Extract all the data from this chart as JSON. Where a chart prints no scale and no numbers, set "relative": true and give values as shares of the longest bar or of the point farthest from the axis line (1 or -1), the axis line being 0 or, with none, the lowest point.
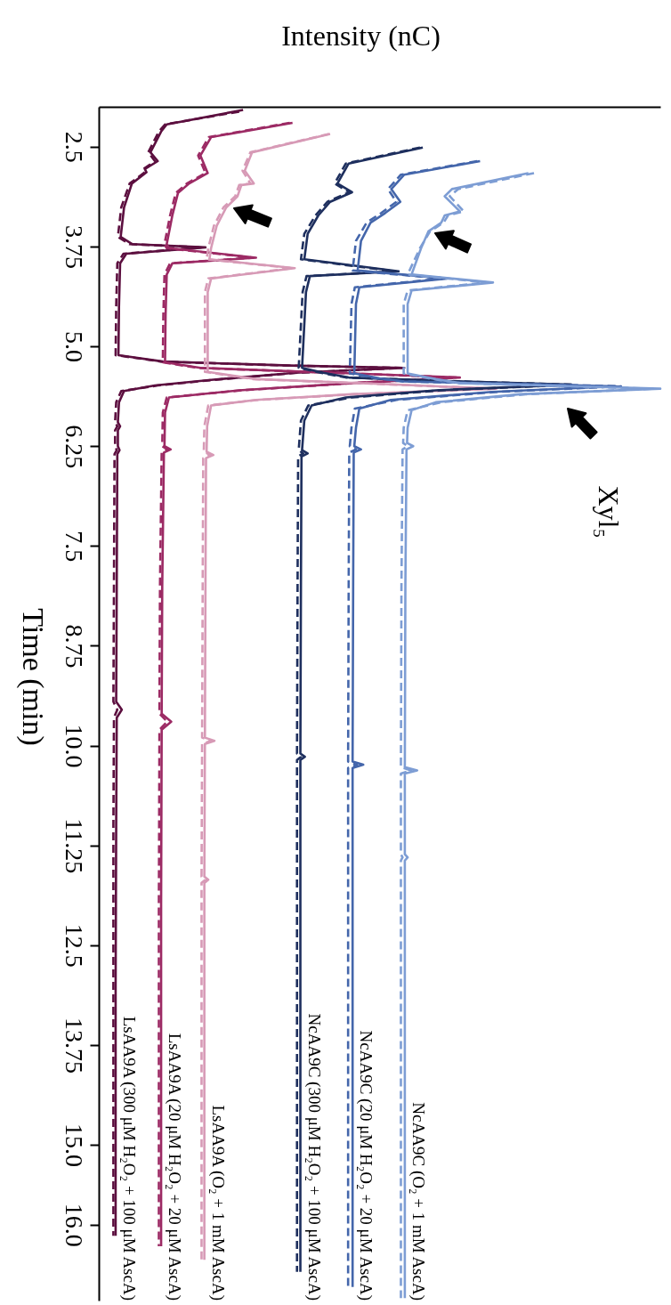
{
  "chart_data": {
    "type": "line",
    "orientation": "horizontal",
    "xlabel": "Intensity (nC)",
    "ylabel": "Time (min)",
    "relative": true,
    "ylim": [
      16.95,
      2.0
    ],
    "yticks": [
      2.5,
      3.75,
      {
        "value": 5,
        "label": "5.0"
      },
      6.25,
      7.5,
      8.75,
      {
        "value": 10,
        "label": "10.0"
      },
      11.25,
      12.5,
      13.75,
      {
        "value": 15,
        "label": "15.0"
      },
      {
        "value": 16,
        "label": "16.0"
      }
    ],
    "annotations": [
      "Xyl₅"
    ],
    "series": [
      {
        "name": "LsAA9A (300 μM H₂O₂ + 100 μM AscA)",
        "color": "#5c0f3f",
        "line_style": "solid",
        "x": [
          2.04,
          2.22,
          2.31,
          2.57,
          2.68,
          2.78,
          2.82,
          2.96,
          3.26,
          3.63,
          3.72,
          3.76,
          3.84,
          3.96,
          4.5,
          5.11,
          5.19,
          5.24,
          5.27,
          5.33,
          5.42,
          5.49,
          5.56,
          5.7,
          5.95,
          6.0,
          6.05,
          6.25,
          6.3,
          6.35,
          8.0,
          9.45,
          9.55,
          9.65,
          11.0,
          13.0,
          16.14
        ],
        "values": [
          0.257,
          0.121,
          0.111,
          0.092,
          0.105,
          0.082,
          0.085,
          0.059,
          0.045,
          0.039,
          0.06,
          0.19,
          0.049,
          0.038,
          0.036,
          0.035,
          0.114,
          0.34,
          0.544,
          0.35,
          0.2,
          0.1,
          0.045,
          0.036,
          0.034,
          0.038,
          0.034,
          0.034,
          0.037,
          0.033,
          0.032,
          0.031,
          0.041,
          0.032,
          0.031,
          0.03,
          0.03
        ]
      },
      {
        "color": "#5c0f3f",
        "line_style": "dashed",
        "x": [
          2.06,
          2.22,
          2.31,
          2.57,
          2.68,
          2.78,
          2.82,
          2.96,
          3.26,
          3.63,
          3.72,
          3.76,
          3.84,
          3.96,
          4.5,
          5.11,
          5.19,
          5.24,
          5.27,
          5.33,
          5.42,
          5.49,
          5.56,
          5.7,
          5.95,
          6.0,
          6.05,
          6.25,
          6.3,
          6.35,
          8.0,
          9.45,
          9.55,
          9.65,
          11.0,
          13.0,
          16.14
        ],
        "values": [
          0.25,
          0.118,
          0.107,
          0.088,
          0.1,
          0.079,
          0.082,
          0.055,
          0.04,
          0.034,
          0.055,
          0.185,
          0.044,
          0.033,
          0.031,
          0.03,
          0.11,
          0.335,
          0.54,
          0.355,
          0.205,
          0.105,
          0.04,
          0.031,
          0.029,
          0.033,
          0.029,
          0.029,
          0.032,
          0.028,
          0.027,
          0.026,
          0.033,
          0.027,
          0.026,
          0.026,
          0.026
        ]
      },
      {
        "name": "LsAA9A (20 μM H₂O₂ + 20 μM AscA)",
        "color": "#9c2a64",
        "line_style": "solid",
        "x": [
          2.2,
          2.38,
          2.61,
          2.83,
          2.96,
          3.08,
          3.36,
          3.72,
          3.77,
          3.89,
          3.96,
          4.1,
          4.6,
          5.2,
          5.27,
          5.33,
          5.39,
          5.46,
          5.55,
          5.64,
          5.83,
          6.25,
          6.29,
          6.33,
          8.0,
          9.6,
          9.7,
          9.8,
          12.0,
          16.27
        ],
        "values": [
          0.345,
          0.2,
          0.181,
          0.194,
          0.161,
          0.141,
          0.131,
          0.121,
          0.125,
          0.28,
          0.131,
          0.121,
          0.119,
          0.118,
          0.181,
          0.42,
          0.643,
          0.45,
          0.25,
          0.125,
          0.118,
          0.117,
          0.128,
          0.116,
          0.113,
          0.112,
          0.129,
          0.112,
          0.111,
          0.111
        ]
      },
      {
        "color": "#9c2a64",
        "line_style": "dashed",
        "x": [
          2.2,
          2.38,
          2.61,
          2.83,
          2.96,
          3.08,
          3.36,
          3.72,
          3.77,
          3.89,
          3.96,
          4.1,
          4.6,
          5.2,
          5.27,
          5.33,
          5.39,
          5.46,
          5.55,
          5.64,
          5.83,
          6.25,
          6.29,
          6.33,
          8.0,
          9.6,
          9.7,
          9.8,
          12.0,
          16.27
        ],
        "values": [
          0.34,
          0.196,
          0.177,
          0.19,
          0.157,
          0.137,
          0.127,
          0.117,
          0.121,
          0.275,
          0.127,
          0.117,
          0.115,
          0.114,
          0.177,
          0.415,
          0.638,
          0.455,
          0.255,
          0.121,
          0.114,
          0.113,
          0.122,
          0.112,
          0.109,
          0.108,
          0.122,
          0.108,
          0.107,
          0.107
        ]
      },
      {
        "name": "LsAA9A (O₂ + 1 mM AscA)",
        "color": "#d79ab6",
        "line_style": "solid",
        "x": [
          2.34,
          2.57,
          2.8,
          2.96,
          2.98,
          3.12,
          3.26,
          3.49,
          3.77,
          3.91,
          4.02,
          4.15,
          4.32,
          5.32,
          5.41,
          5.47,
          5.53,
          5.6,
          5.67,
          5.74,
          6.0,
          6.32,
          6.36,
          6.4,
          8.0,
          9.9,
          9.94,
          9.98,
          11.64,
          11.68,
          11.72,
          14.0,
          16.44
        ],
        "values": [
          0.412,
          0.273,
          0.26,
          0.276,
          0.254,
          0.247,
          0.227,
          0.21,
          0.2,
          0.197,
          0.349,
          0.2,
          0.194,
          0.194,
          0.28,
          0.5,
          0.708,
          0.45,
          0.28,
          0.2,
          0.193,
          0.192,
          0.204,
          0.191,
          0.19,
          0.189,
          0.206,
          0.189,
          0.188,
          0.195,
          0.188,
          0.188,
          0.188
        ]
      },
      {
        "color": "#d79ab6",
        "line_style": "dashed",
        "x": [
          2.34,
          2.57,
          2.8,
          2.96,
          2.98,
          3.12,
          3.26,
          3.49,
          3.77,
          3.91,
          4.02,
          4.15,
          4.32,
          5.32,
          5.41,
          5.47,
          5.53,
          5.6,
          5.67,
          5.74,
          6.0,
          6.32,
          6.36,
          6.4,
          8.0,
          9.9,
          9.94,
          9.98,
          11.64,
          11.68,
          11.72,
          14.0,
          16.44
        ],
        "values": [
          0.41,
          0.27,
          0.256,
          0.27,
          0.25,
          0.243,
          0.222,
          0.205,
          0.195,
          0.192,
          0.345,
          0.195,
          0.189,
          0.189,
          0.275,
          0.495,
          0.7,
          0.455,
          0.285,
          0.195,
          0.188,
          0.187,
          0.199,
          0.186,
          0.185,
          0.184,
          0.2,
          0.184,
          0.183,
          0.19,
          0.183,
          0.183,
          0.183
        ]
      },
      {
        "name": "NcAA9C (300 μM H₂O₂ + 100 μM AscA)",
        "color": "#1e2f5e",
        "line_style": "solid",
        "x": [
          2.51,
          2.71,
          2.96,
          3.07,
          3.19,
          3.36,
          3.59,
          3.91,
          4.06,
          4.12,
          4.32,
          5.27,
          5.33,
          5.39,
          5.44,
          5.48,
          5.55,
          5.64,
          5.74,
          5.93,
          6.3,
          6.34,
          6.38,
          8.0,
          10.1,
          10.14,
          10.18,
          13.0,
          16.59
        ],
        "values": [
          0.577,
          0.445,
          0.425,
          0.451,
          0.412,
          0.391,
          0.372,
          0.366,
          0.534,
          0.376,
          0.369,
          0.362,
          0.4,
          0.445,
          0.65,
          0.841,
          0.6,
          0.44,
          0.379,
          0.366,
          0.362,
          0.372,
          0.361,
          0.36,
          0.359,
          0.367,
          0.359,
          0.359,
          0.359
        ]
      },
      {
        "color": "#1e2f5e",
        "line_style": "dashed",
        "x": [
          2.51,
          2.71,
          2.96,
          3.07,
          3.19,
          3.36,
          3.59,
          3.91,
          4.06,
          4.12,
          4.32,
          5.27,
          5.33,
          5.39,
          5.44,
          5.48,
          5.55,
          5.64,
          5.74,
          5.93,
          6.3,
          6.34,
          6.38,
          8.0,
          10.1,
          10.14,
          10.18,
          13.0,
          16.59
        ],
        "values": [
          0.572,
          0.44,
          0.42,
          0.446,
          0.407,
          0.386,
          0.366,
          0.36,
          0.528,
          0.37,
          0.363,
          0.356,
          0.395,
          0.44,
          0.645,
          0.845,
          0.61,
          0.45,
          0.373,
          0.36,
          0.356,
          0.364,
          0.355,
          0.354,
          0.353,
          0.36,
          0.353,
          0.353,
          0.353
        ]
      },
      {
        "name": "NcAA9C (20 μM H₂O₂ + 20 μM AscA)",
        "color": "#4466ab",
        "line_style": "solid",
        "x": [
          2.68,
          2.85,
          3.03,
          3.19,
          3.33,
          3.45,
          3.68,
          4.05,
          4.15,
          4.26,
          4.47,
          5.34,
          5.4,
          5.44,
          5.47,
          5.5,
          5.57,
          5.67,
          5.78,
          6.02,
          6.25,
          6.29,
          6.33,
          8.0,
          10.2,
          10.24,
          10.28,
          12.0,
          14.5,
          16.78
        ],
        "values": [
          0.679,
          0.544,
          0.521,
          0.537,
          0.51,
          0.484,
          0.467,
          0.461,
          0.62,
          0.464,
          0.458,
          0.455,
          0.5,
          0.544,
          0.75,
          0.921,
          0.7,
          0.52,
          0.464,
          0.458,
          0.455,
          0.467,
          0.454,
          0.453,
          0.452,
          0.471,
          0.452,
          0.452,
          0.452,
          0.452
        ]
      },
      {
        "color": "#4466ab",
        "line_style": "dashed",
        "x": [
          2.68,
          2.85,
          3.03,
          3.19,
          3.33,
          3.45,
          3.68,
          4.05,
          4.15,
          4.26,
          4.47,
          5.34,
          5.4,
          5.44,
          5.47,
          5.5,
          5.57,
          5.67,
          5.78,
          6.02,
          6.25,
          6.29,
          6.33,
          8.0,
          10.2,
          10.24,
          10.28,
          12.0,
          14.5,
          16.78
        ],
        "values": [
          0.674,
          0.538,
          0.515,
          0.53,
          0.503,
          0.477,
          0.458,
          0.452,
          0.612,
          0.456,
          0.45,
          0.447,
          0.495,
          0.54,
          0.745,
          0.93,
          0.71,
          0.53,
          0.456,
          0.45,
          0.447,
          0.458,
          0.446,
          0.445,
          0.444,
          0.46,
          0.444,
          0.444,
          0.444,
          0.444
        ]
      },
      {
        "name": "NcAA9C (O₂ + 1 mM AscA)",
        "color": "#7d9dd4",
        "line_style": "solid",
        "x": [
          2.83,
          3.03,
          3.12,
          3.31,
          3.36,
          3.45,
          3.56,
          3.77,
          4.1,
          4.2,
          4.3,
          4.47,
          5.34,
          5.41,
          5.46,
          5.5,
          5.53,
          5.6,
          5.7,
          5.8,
          6.02,
          6.21,
          6.25,
          6.29,
          8.0,
          10.27,
          10.31,
          10.35,
          11.36,
          11.4,
          11.44,
          14.0,
          16.92
        ],
        "values": [
          0.765,
          0.629,
          0.616,
          0.643,
          0.616,
          0.61,
          0.587,
          0.574,
          0.557,
          0.702,
          0.557,
          0.55,
          0.55,
          0.6,
          0.643,
          0.85,
          1.0,
          0.75,
          0.6,
          0.557,
          0.55,
          0.549,
          0.56,
          0.548,
          0.546,
          0.545,
          0.567,
          0.545,
          0.545,
          0.55,
          0.545,
          0.545,
          0.545
        ]
      },
      {
        "color": "#7d9dd4",
        "line_style": "dashed",
        "x": [
          2.83,
          3.03,
          3.12,
          3.31,
          3.36,
          3.45,
          3.56,
          3.77,
          4.1,
          4.2,
          4.3,
          4.47,
          5.34,
          5.41,
          5.46,
          5.5,
          5.53,
          5.6,
          5.7,
          5.8,
          6.02,
          6.21,
          6.25,
          6.29,
          8.0,
          10.27,
          10.31,
          10.35,
          11.36,
          11.4,
          11.44,
          14.0,
          16.92
        ],
        "values": [
          0.775,
          0.64,
          0.625,
          0.65,
          0.622,
          0.614,
          0.59,
          0.572,
          0.55,
          0.692,
          0.55,
          0.543,
          0.543,
          0.595,
          0.64,
          0.84,
          0.99,
          0.76,
          0.61,
          0.55,
          0.543,
          0.542,
          0.55,
          0.541,
          0.539,
          0.538,
          0.556,
          0.538,
          0.538,
          0.541,
          0.538,
          0.538,
          0.538
        ]
      }
    ]
  }
}
